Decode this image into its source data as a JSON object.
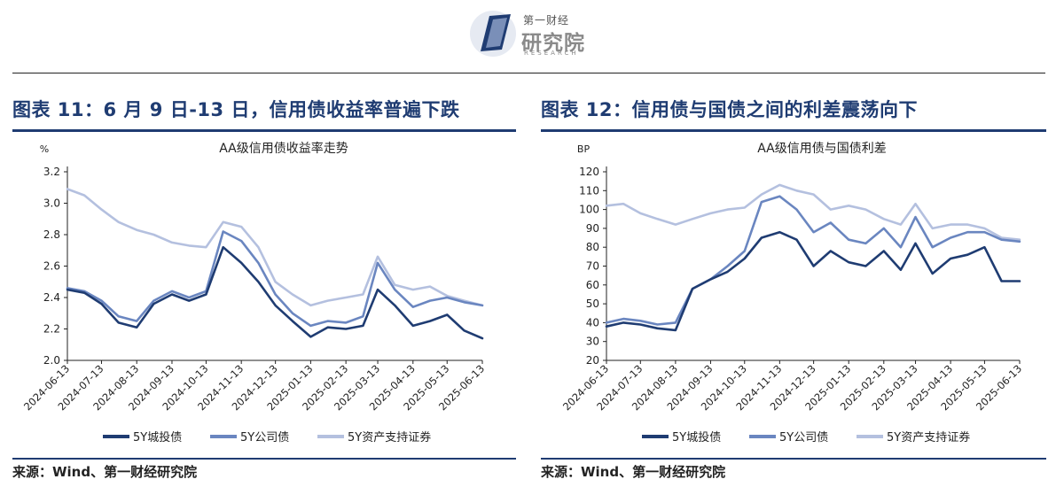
{
  "header": {
    "logo_sub": "第一财经",
    "logo_main": "研究院",
    "logo_en": "RESEARCH",
    "logo_colors": {
      "dark": "#1f3c72",
      "light": "#7a8fb8"
    }
  },
  "left": {
    "figure_title": "图表 11：6 月 9 日-13 日，信用债收益率普遍下跌",
    "source": "来源：Wind、第一财经研究院"
  },
  "right": {
    "figure_title": "图表 12：信用债与国债之间的利差震荡向下",
    "source": "来源：Wind、第一财经研究院"
  },
  "chart_data": [
    {
      "type": "line",
      "title": "AA级信用债收益率走势",
      "ylabel": "%",
      "ylim": [
        2.0,
        3.2
      ],
      "yticks": [
        "2.0",
        "2.2",
        "2.4",
        "2.6",
        "2.8",
        "3.0",
        "3.2"
      ],
      "x_ticks": [
        "2024-06-13",
        "2024-07-13",
        "2024-08-13",
        "2024-09-13",
        "2024-10-13",
        "2024-11-13",
        "2024-12-13",
        "2025-01-13",
        "2025-02-13",
        "2025-03-13",
        "2025-04-13",
        "2025-05-13",
        "2025-06-13"
      ],
      "x_dates": [
        "2024-06-13",
        "2024-06-28",
        "2024-07-13",
        "2024-07-28",
        "2024-08-13",
        "2024-08-28",
        "2024-09-13",
        "2024-09-28",
        "2024-10-13",
        "2024-10-28",
        "2024-11-13",
        "2024-11-28",
        "2024-12-13",
        "2024-12-28",
        "2025-01-13",
        "2025-01-28",
        "2025-02-13",
        "2025-02-28",
        "2025-03-13",
        "2025-03-28",
        "2025-04-13",
        "2025-04-28",
        "2025-05-13",
        "2025-05-28",
        "2025-06-13"
      ],
      "series": [
        {
          "name": "5Y城投债",
          "color": "#1f3c72",
          "values": [
            2.45,
            2.43,
            2.36,
            2.24,
            2.21,
            2.36,
            2.42,
            2.38,
            2.42,
            2.72,
            2.62,
            2.5,
            2.35,
            2.25,
            2.15,
            2.21,
            2.2,
            2.22,
            2.45,
            2.35,
            2.22,
            2.25,
            2.29,
            2.19,
            2.14
          ]
        },
        {
          "name": "5Y公司债",
          "color": "#6a86c0",
          "values": [
            2.46,
            2.44,
            2.38,
            2.28,
            2.25,
            2.38,
            2.44,
            2.4,
            2.44,
            2.82,
            2.76,
            2.62,
            2.42,
            2.3,
            2.22,
            2.25,
            2.24,
            2.28,
            2.62,
            2.45,
            2.34,
            2.38,
            2.4,
            2.37,
            2.35
          ]
        },
        {
          "name": "5Y资产支持证券",
          "color": "#b4c0df",
          "values": [
            3.09,
            3.05,
            2.96,
            2.88,
            2.83,
            2.8,
            2.75,
            2.73,
            2.72,
            2.88,
            2.85,
            2.72,
            2.5,
            2.42,
            2.35,
            2.38,
            2.4,
            2.42,
            2.66,
            2.48,
            2.45,
            2.47,
            2.41,
            2.38,
            2.35
          ]
        }
      ],
      "legend": "bottom"
    },
    {
      "type": "line",
      "title": "AA级信用债与国债利差",
      "ylabel": "BP",
      "ylim": [
        20,
        120
      ],
      "yticks": [
        "20",
        "30",
        "40",
        "50",
        "60",
        "70",
        "80",
        "90",
        "100",
        "110",
        "120"
      ],
      "x_ticks": [
        "2024-06-13",
        "2024-07-13",
        "2024-08-13",
        "2024-09-13",
        "2024-10-13",
        "2024-11-13",
        "2024-12-13",
        "2025-01-13",
        "2025-02-13",
        "2025-03-13",
        "2025-04-13",
        "2025-05-13",
        "2025-06-13"
      ],
      "x_dates": [
        "2024-06-13",
        "2024-06-28",
        "2024-07-13",
        "2024-07-28",
        "2024-08-13",
        "2024-08-28",
        "2024-09-13",
        "2024-09-28",
        "2024-10-13",
        "2024-10-28",
        "2024-11-13",
        "2024-11-28",
        "2024-12-13",
        "2024-12-28",
        "2025-01-13",
        "2025-01-28",
        "2025-02-13",
        "2025-02-28",
        "2025-03-13",
        "2025-03-28",
        "2025-04-13",
        "2025-04-28",
        "2025-05-13",
        "2025-05-28",
        "2025-06-13"
      ],
      "series": [
        {
          "name": "5Y城投债",
          "color": "#1f3c72",
          "values": [
            38,
            40,
            39,
            37,
            36,
            58,
            63,
            67,
            74,
            85,
            88,
            84,
            70,
            78,
            72,
            70,
            78,
            68,
            82,
            66,
            74,
            76,
            80,
            62,
            62
          ]
        },
        {
          "name": "5Y公司债",
          "color": "#6a86c0",
          "values": [
            40,
            42,
            41,
            39,
            40,
            58,
            63,
            70,
            78,
            104,
            107,
            100,
            88,
            93,
            84,
            82,
            90,
            80,
            96,
            80,
            85,
            88,
            88,
            84,
            83
          ]
        },
        {
          "name": "5Y资产支持证券",
          "color": "#b4c0df",
          "values": [
            102,
            103,
            98,
            95,
            92,
            95,
            98,
            100,
            101,
            108,
            113,
            110,
            108,
            100,
            102,
            100,
            95,
            92,
            103,
            90,
            92,
            92,
            90,
            85,
            84
          ]
        }
      ],
      "legend": "bottom"
    }
  ]
}
